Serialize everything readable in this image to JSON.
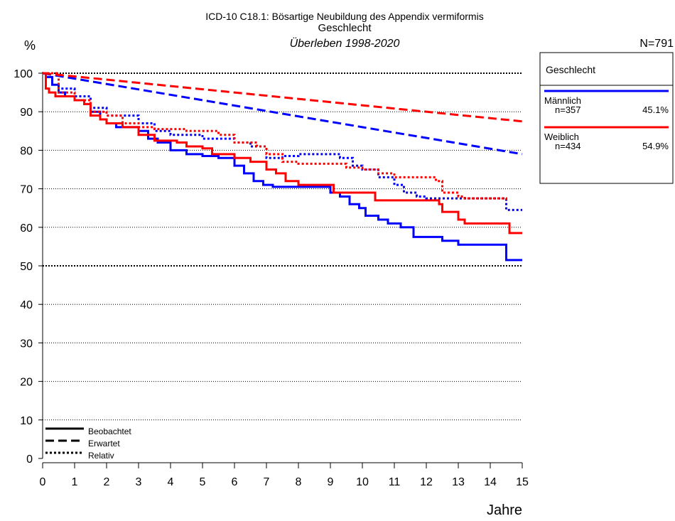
{
  "chart_data": {
    "type": "line",
    "title": "ICD-10 C18.1: Bösartige Neubildung des Appendix vermiformis",
    "subtitle": "Geschlecht",
    "subtitle2": "Überleben 1998-2020",
    "y_label": "%",
    "x_label": "Jahre",
    "total": "N=791",
    "xlim": [
      0,
      15
    ],
    "xticks": [
      0,
      1,
      2,
      3,
      4,
      5,
      6,
      7,
      8,
      9,
      10,
      11,
      12,
      13,
      14,
      15
    ],
    "ylim": [
      0,
      100
    ],
    "yticks": [
      0,
      10,
      20,
      30,
      40,
      50,
      60,
      70,
      80,
      90,
      100
    ],
    "grid": true,
    "legend_title": "Geschlecht",
    "groups": [
      {
        "name": "Männlich",
        "n": "n=357",
        "share": "45.1%",
        "color": "#0000ff"
      },
      {
        "name": "Weiblich",
        "n": "n=434",
        "share": "54.9%",
        "color": "#ff0000"
      }
    ],
    "line_styles": [
      {
        "name": "Beobachtet",
        "dash": "solid",
        "step": true
      },
      {
        "name": "Erwartet",
        "dash": "dashed",
        "step": false
      },
      {
        "name": "Relativ",
        "dash": "dotted",
        "step": true
      }
    ],
    "series": [
      {
        "group": 0,
        "style": 0,
        "x": [
          0,
          0.1,
          0.3,
          0.5,
          0.7,
          1,
          1.3,
          1.5,
          1.8,
          2,
          2.3,
          2.7,
          3,
          3.3,
          3.6,
          4,
          4.5,
          5,
          5.5,
          6,
          6.3,
          6.6,
          6.9,
          7.2,
          8,
          9,
          9.3,
          9.6,
          9.9,
          10.1,
          10.5,
          10.8,
          11.2,
          11.6,
          12,
          12.5,
          13,
          14,
          14.5,
          15
        ],
        "values": [
          100,
          99,
          97,
          95,
          94,
          93,
          92,
          90,
          88,
          87,
          86,
          86,
          85,
          83,
          82,
          80,
          79,
          78.5,
          78,
          76,
          74,
          72,
          71,
          70.5,
          70.5,
          69,
          68,
          66,
          65,
          63,
          62,
          61,
          60,
          57.5,
          57.5,
          56.5,
          55.5,
          55.5,
          51.5,
          51.5
        ]
      },
      {
        "group": 1,
        "style": 0,
        "x": [
          0,
          0.1,
          0.2,
          0.4,
          1,
          1.3,
          1.5,
          1.8,
          2,
          2.5,
          3,
          3.5,
          4.2,
          4.5,
          5,
          5.3,
          6,
          6.5,
          7,
          7.3,
          7.6,
          8,
          9,
          9.1,
          10,
          10.4,
          11,
          12,
          12.4,
          12.5,
          13,
          13.2,
          14,
          14.6,
          15
        ],
        "values": [
          100,
          96,
          95,
          94,
          93,
          92,
          89,
          88,
          87,
          86,
          84,
          82.5,
          82,
          81,
          80.5,
          79,
          78,
          77,
          75,
          74,
          72,
          71,
          71,
          69,
          69,
          67,
          67,
          67,
          66,
          64,
          62,
          61,
          61,
          58.5,
          58.5
        ]
      },
      {
        "group": 0,
        "style": 1,
        "x": [
          0,
          15
        ],
        "values": [
          100,
          79
        ]
      },
      {
        "group": 1,
        "style": 1,
        "x": [
          0,
          15
        ],
        "values": [
          100,
          87.5
        ]
      },
      {
        "group": 0,
        "style": 2,
        "x": [
          0,
          0.5,
          1,
          1.5,
          2,
          3,
          3.5,
          4,
          5,
          6,
          6.5,
          7,
          7.5,
          8,
          9,
          9.3,
          9.7,
          10,
          10.5,
          11,
          11.3,
          11.7,
          12,
          13,
          14.5,
          15
        ],
        "values": [
          100,
          96,
          94,
          91,
          89,
          87,
          85,
          84,
          83,
          82,
          81,
          78,
          78.5,
          79,
          79,
          78,
          76,
          75,
          73,
          71,
          69,
          68,
          67.5,
          67.5,
          64.5,
          64.5
        ]
      },
      {
        "group": 1,
        "style": 2,
        "x": [
          0,
          0.5,
          1,
          1.5,
          2,
          2.5,
          3,
          3.5,
          4.5,
          5.5,
          6,
          6.7,
          7,
          7.5,
          8,
          9,
          9.5,
          10,
          10.5,
          11,
          12,
          12.3,
          12.5,
          13,
          13.2,
          14.5
        ],
        "values": [
          100,
          95,
          93,
          90,
          89,
          87,
          86,
          85.5,
          85,
          84,
          82,
          81,
          79,
          77,
          76.5,
          76.5,
          75.5,
          75,
          74,
          73,
          73,
          72,
          69,
          68,
          67.5,
          67
        ]
      }
    ]
  }
}
